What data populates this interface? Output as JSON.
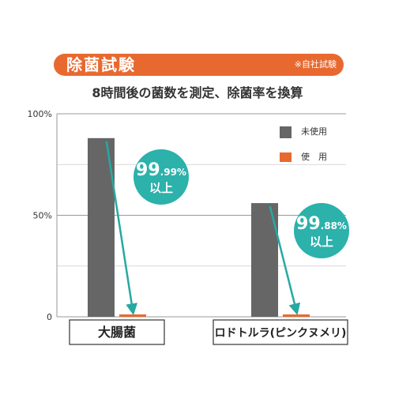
{
  "header": {
    "title": "除菌試験",
    "note": "※自社試験"
  },
  "subtitle": "8時間後の菌数を測定、除菌率を換算",
  "colors": {
    "header_bg": "#e8692f",
    "untreated": "#666666",
    "treated": "#e8692f",
    "arrow": "#27a8a3",
    "badge": "#2cb1ab"
  },
  "legend": {
    "untreated_label": "未使用",
    "treated_label": "使　用"
  },
  "badges": [
    {
      "main": "99",
      "decimals": ".99%",
      "sub": "以上"
    },
    {
      "main": "99",
      "decimals": ".88%",
      "sub": "以上"
    }
  ],
  "chart_data": {
    "type": "bar",
    "categories": [
      "大腸菌",
      "ロドトルラ(ピンクヌメリ)"
    ],
    "series": [
      {
        "name": "未使用",
        "values": [
          88,
          56
        ]
      },
      {
        "name": "使　用",
        "values": [
          1,
          1
        ]
      }
    ],
    "ylim": [
      0,
      100
    ],
    "yticks": [
      "0",
      "50%",
      "100%"
    ],
    "grid": true,
    "legend_position": "top-right"
  }
}
